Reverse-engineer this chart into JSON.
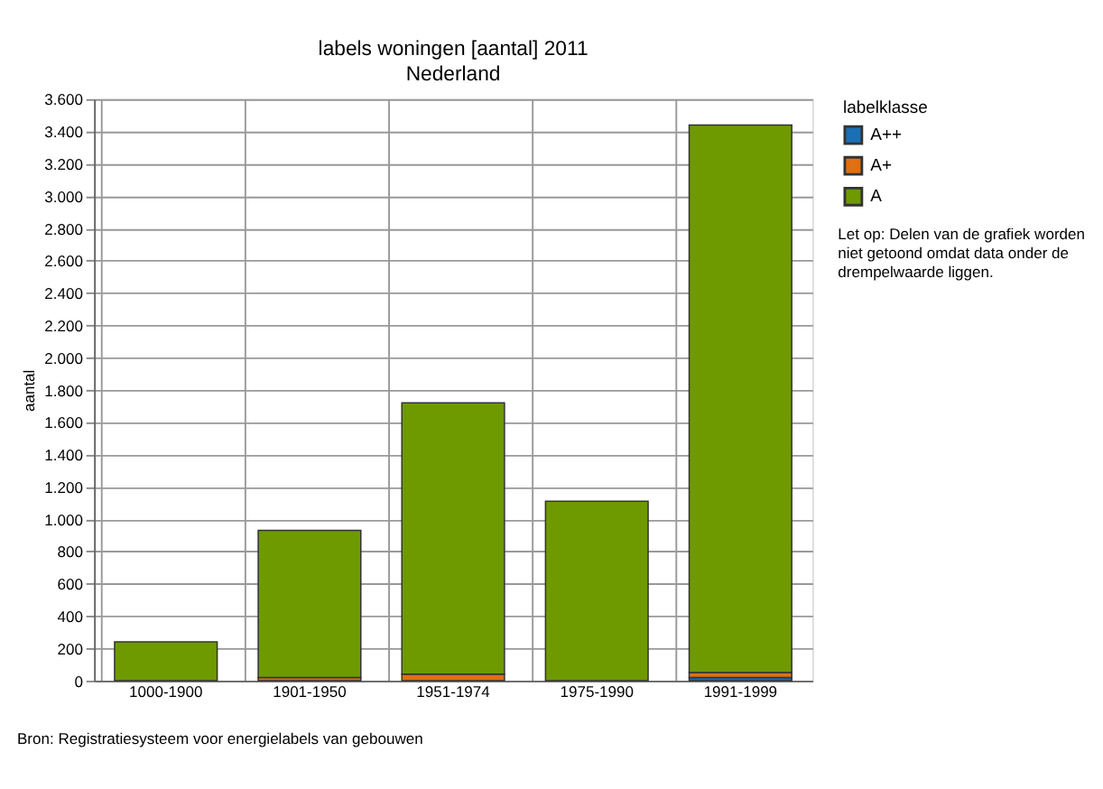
{
  "chart_data": {
    "type": "bar",
    "title": "labels woningen [aantal] 2011",
    "subtitle": "Nederland",
    "ylabel": "aantal",
    "legend_title": "labelklasse",
    "categories": [
      "1000-1900",
      "1901-1950",
      "1951-1974",
      "1975-1990",
      "1991-1999"
    ],
    "stacked": true,
    "series": [
      {
        "name": "A++",
        "color": "#1a6fb5",
        "values": [
          null,
          null,
          null,
          null,
          20
        ]
      },
      {
        "name": "A+",
        "color": "#e07010",
        "values": [
          null,
          20,
          40,
          null,
          30
        ]
      },
      {
        "name": "A",
        "color": "#6e9a00",
        "values": [
          240,
          910,
          1680,
          1110,
          3390
        ]
      }
    ],
    "ylim": [
      0,
      3600
    ],
    "yticks": [
      0,
      200,
      400,
      600,
      800,
      {
        "value": 1000,
        "label": "1.000"
      },
      {
        "value": 1200,
        "label": "1.200"
      },
      {
        "value": 1400,
        "label": "1.400"
      },
      {
        "value": 1600,
        "label": "1.600"
      },
      {
        "value": 1800,
        "label": "1.800"
      },
      {
        "value": 2000,
        "label": "2.000"
      },
      {
        "value": 2200,
        "label": "2.200"
      },
      {
        "value": 2400,
        "label": "2.400"
      },
      {
        "value": 2600,
        "label": "2.600"
      },
      {
        "value": 2800,
        "label": "2.800"
      },
      {
        "value": 3000,
        "label": "3.000"
      },
      {
        "value": 3200,
        "label": "3.200"
      },
      {
        "value": 3400,
        "label": "3.400"
      },
      {
        "value": 3600,
        "label": "3.600"
      }
    ],
    "grid": true,
    "legend": "right",
    "annotations": [
      "Let op: Delen van de grafiek worden niet getoond omdat data onder de drempelwaarde liggen.",
      "Bron: Registratiesysteem voor energielabels van gebouwen"
    ]
  }
}
